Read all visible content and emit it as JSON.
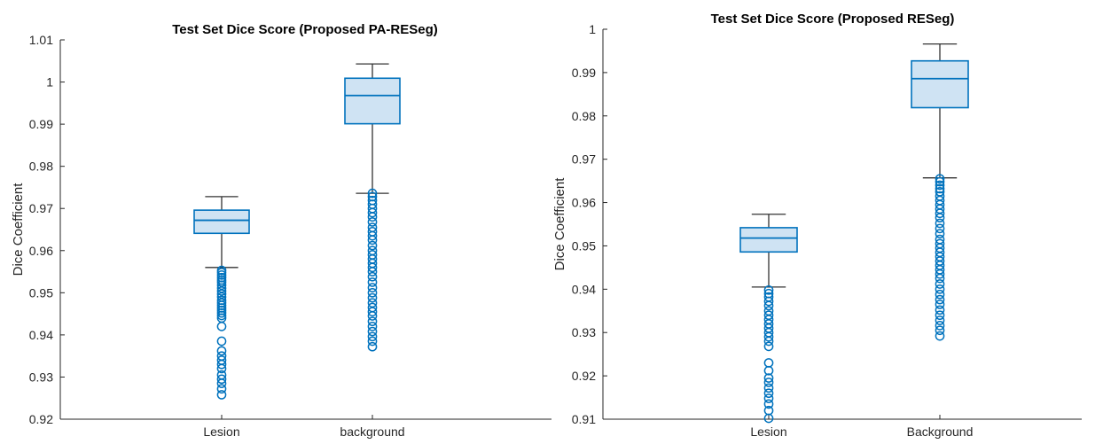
{
  "chart_data": [
    {
      "type": "box",
      "title": "Test Set Dice Score (Proposed PA-RESeg)",
      "ylabel": "Dice Coefficient",
      "xlabel": "",
      "ylim": [
        0.92,
        1.01
      ],
      "yticks": [
        0.92,
        0.93,
        0.94,
        0.95,
        0.96,
        0.97,
        0.98,
        0.99,
        1,
        1.01
      ],
      "ytick_labels": [
        "0.92",
        "0.93",
        "0.94",
        "0.95",
        "0.96",
        "0.97",
        "0.98",
        "0.99",
        "1",
        "1.01"
      ],
      "categories": [
        "Lesion",
        "background"
      ],
      "box_color": "#0072BD",
      "box_fill": "#cfe3f3",
      "boxes": [
        {
          "whisker_low": 0.956,
          "q1": 0.9641,
          "median": 0.9672,
          "q3": 0.9696,
          "whisker_high": 0.9728,
          "outliers": [
            0.9553,
            0.9548,
            0.9542,
            0.9536,
            0.953,
            0.9525,
            0.9518,
            0.9511,
            0.9504,
            0.9497,
            0.949,
            0.9482,
            0.9476,
            0.947,
            0.9464,
            0.9458,
            0.9452,
            0.9446,
            0.944,
            0.942,
            0.9385,
            0.9362,
            0.935,
            0.934,
            0.933,
            0.932,
            0.9305,
            0.9295,
            0.9285,
            0.9272,
            0.9258
          ]
        },
        {
          "whisker_low": 0.9736,
          "q1": 0.9901,
          "median": 0.9968,
          "q3": 1.0009,
          "whisker_high": 1.0043,
          "outliers": [
            0.9736,
            0.9728,
            0.9719,
            0.971,
            0.97,
            0.969,
            0.968,
            0.9668,
            0.9655,
            0.9645,
            0.9635,
            0.9625,
            0.9612,
            0.96,
            0.959,
            0.958,
            0.957,
            0.956,
            0.955,
            0.9538,
            0.9525,
            0.9512,
            0.95,
            0.9488,
            0.9476,
            0.9465,
            0.9455,
            0.9445,
            0.9432,
            0.942,
            0.9408,
            0.9396,
            0.9385,
            0.9372
          ]
        }
      ]
    },
    {
      "type": "box",
      "title": "Test Set Dice Score (Proposed RESeg)",
      "ylabel": "Dice Coefficient",
      "xlabel": "",
      "ylim": [
        0.91,
        1.0
      ],
      "yticks": [
        0.91,
        0.92,
        0.93,
        0.94,
        0.95,
        0.96,
        0.97,
        0.98,
        0.99,
        1
      ],
      "ytick_labels": [
        "0.91",
        "0.92",
        "0.93",
        "0.94",
        "0.95",
        "0.96",
        "0.97",
        "0.98",
        "0.99",
        "1"
      ],
      "categories": [
        "Lesion",
        "Background"
      ],
      "box_color": "#0072BD",
      "box_fill": "#cfe3f3",
      "boxes": [
        {
          "whisker_low": 0.9405,
          "q1": 0.9486,
          "median": 0.9518,
          "q3": 0.9542,
          "whisker_high": 0.9573,
          "outliers": [
            0.9398,
            0.939,
            0.9382,
            0.9372,
            0.9362,
            0.935,
            0.934,
            0.933,
            0.932,
            0.931,
            0.93,
            0.929,
            0.928,
            0.9268,
            0.923,
            0.9212,
            0.9195,
            0.9185,
            0.9172,
            0.916,
            0.9148,
            0.9135,
            0.912,
            0.9102
          ]
        },
        {
          "whisker_low": 0.9657,
          "q1": 0.9819,
          "median": 0.9886,
          "q3": 0.9927,
          "whisker_high": 0.9966,
          "outliers": [
            0.9655,
            0.9648,
            0.964,
            0.9632,
            0.9625,
            0.9615,
            0.9605,
            0.9595,
            0.9585,
            0.9575,
            0.9565,
            0.9552,
            0.954,
            0.9528,
            0.9515,
            0.9505,
            0.9495,
            0.9485,
            0.9475,
            0.9465,
            0.9455,
            0.9445,
            0.9435,
            0.9425,
            0.9412,
            0.94,
            0.9388,
            0.9376,
            0.9365,
            0.9352,
            0.934,
            0.9328,
            0.9316,
            0.9305,
            0.9292
          ]
        }
      ]
    }
  ]
}
